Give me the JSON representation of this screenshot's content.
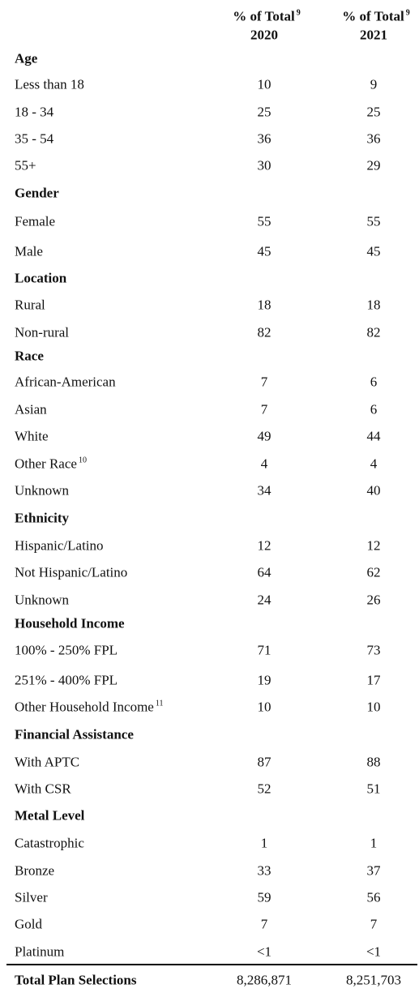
{
  "columns": [
    {
      "text": "% of Total",
      "sup": "9",
      "year": "2020"
    },
    {
      "text": "% of Total",
      "sup": "9",
      "year": "2021"
    }
  ],
  "sections": [
    {
      "title": "Age",
      "rows": [
        {
          "label": "Less than 18",
          "values": [
            10,
            9
          ]
        },
        {
          "label": "18 - 34",
          "values": [
            25,
            25
          ]
        },
        {
          "label": "35 - 54",
          "values": [
            36,
            36
          ]
        },
        {
          "label": "55+",
          "values": [
            30,
            29
          ]
        }
      ]
    },
    {
      "title": "Gender",
      "rows": [
        {
          "label": "Female",
          "values": [
            55,
            55
          ]
        },
        {
          "label": "Male",
          "values": [
            45,
            45
          ]
        }
      ]
    },
    {
      "title": "Location",
      "rows": [
        {
          "label": "Rural",
          "values": [
            18,
            18
          ]
        },
        {
          "label": "Non-rural",
          "values": [
            82,
            82
          ]
        }
      ]
    },
    {
      "title": "Race",
      "rows": [
        {
          "label": "African-American",
          "values": [
            7,
            6
          ]
        },
        {
          "label": "Asian",
          "values": [
            7,
            6
          ]
        },
        {
          "label": "White",
          "values": [
            49,
            44
          ]
        },
        {
          "label": "Other Race",
          "sup": "10",
          "values": [
            4,
            4
          ]
        },
        {
          "label": "Unknown",
          "values": [
            34,
            40
          ]
        }
      ]
    },
    {
      "title": "Ethnicity",
      "rows": [
        {
          "label": "Hispanic/Latino",
          "values": [
            12,
            12
          ]
        },
        {
          "label": "Not Hispanic/Latino",
          "values": [
            64,
            62
          ]
        },
        {
          "label": "Unknown",
          "values": [
            24,
            26
          ]
        }
      ]
    },
    {
      "title": "Household Income",
      "rows": [
        {
          "label": "100% - 250% FPL",
          "values": [
            71,
            73
          ]
        },
        {
          "label": "251% - 400% FPL",
          "values": [
            19,
            17
          ]
        },
        {
          "label": "Other Household Income",
          "sup": "11",
          "values": [
            10,
            10
          ]
        }
      ]
    },
    {
      "title": "Financial Assistance",
      "rows": [
        {
          "label": "With APTC",
          "values": [
            87,
            88
          ]
        },
        {
          "label": "With CSR",
          "values": [
            52,
            51
          ]
        }
      ]
    },
    {
      "title": "Metal Level",
      "rows": [
        {
          "label": "Catastrophic",
          "values": [
            1,
            1
          ]
        },
        {
          "label": "Bronze",
          "values": [
            33,
            37
          ]
        },
        {
          "label": "Silver",
          "values": [
            59,
            56
          ]
        },
        {
          "label": "Gold",
          "values": [
            7,
            7
          ]
        },
        {
          "label": "Platinum",
          "values": [
            "<1",
            "<1"
          ]
        }
      ]
    }
  ],
  "total": {
    "label": "Total Plan Selections",
    "values": [
      "8,286,871",
      "8,251,703"
    ]
  }
}
